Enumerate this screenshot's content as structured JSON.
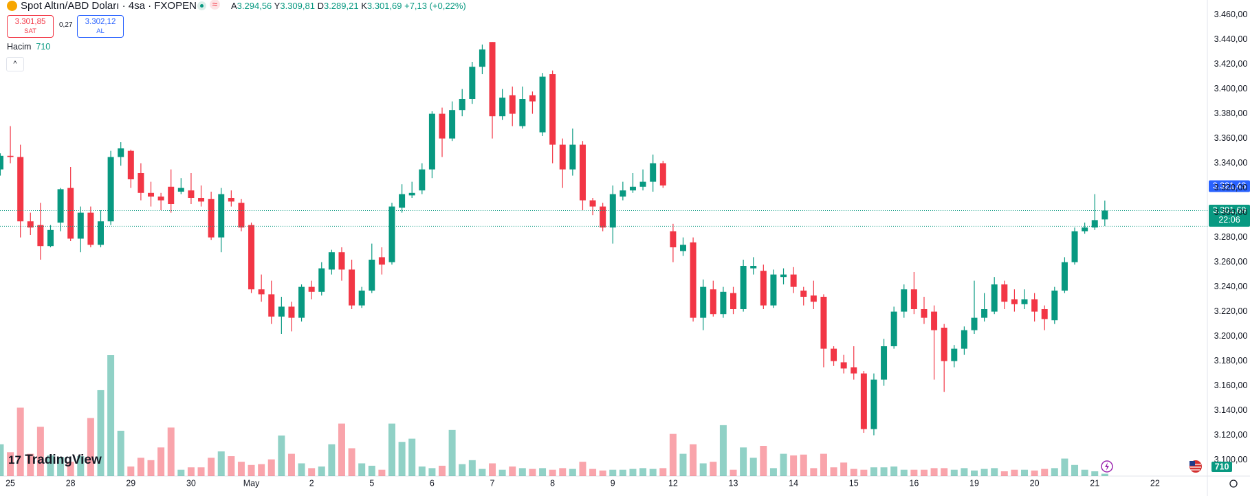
{
  "header": {
    "title": "Spot Altın/ABD Doları · 4sa · FXOPEN",
    "ohlc": [
      {
        "key": "A",
        "value": "3.294,56"
      },
      {
        "key": "Y",
        "value": "3.309,81"
      },
      {
        "key": "D",
        "value": "3.289,21"
      },
      {
        "key": "K",
        "value": "3.301,69"
      }
    ],
    "change": "+7,13 (+0,22%)",
    "sell": {
      "price": "3.301,85",
      "label": "SAT"
    },
    "spread": "0,27",
    "buy": {
      "price": "3.302,12",
      "label": "AL"
    },
    "volume_label": "Hacim",
    "logo": "TradingView"
  },
  "chart_data": {
    "type": "candlestick",
    "up_color": "#089981",
    "down_color": "#f23645",
    "categories": [
      null,
      "25",
      null,
      null,
      null,
      null,
      null,
      "28",
      null,
      null,
      null,
      null,
      null,
      "29",
      null,
      null,
      null,
      null,
      null,
      "30",
      null,
      null,
      null,
      null,
      null,
      "May",
      null,
      null,
      null,
      null,
      null,
      "2",
      null,
      null,
      null,
      null,
      null,
      "5",
      null,
      null,
      null,
      null,
      null,
      "6",
      null,
      null,
      null,
      null,
      null,
      "7",
      null,
      null,
      null,
      null,
      null,
      "8",
      null,
      null,
      null,
      null,
      null,
      "9",
      null,
      null,
      null,
      null,
      null,
      "12",
      null,
      null,
      null,
      null,
      null,
      "13",
      null,
      null,
      null,
      null,
      null,
      "14",
      null,
      null,
      null,
      null,
      null,
      "15",
      null,
      null,
      null,
      null,
      null,
      "16",
      null,
      null,
      null,
      null,
      null,
      "19",
      null,
      null,
      null,
      null,
      null,
      "20",
      null,
      null,
      null,
      null,
      null,
      "21",
      null,
      null,
      null,
      null,
      null,
      "22"
    ],
    "open": [
      3335,
      3346,
      3345,
      3293,
      3290,
      3273,
      3292,
      3320,
      3279,
      3300,
      3274,
      3293,
      3345,
      3350,
      3332,
      3316,
      3313,
      3321,
      3317,
      3318,
      3312,
      3311,
      3280,
      3312,
      3308,
      3290,
      3238,
      3234,
      3216,
      3224,
      3215,
      3240,
      3236,
      3254,
      3268,
      3254,
      3225,
      3237,
      3264,
      3260,
      3304,
      3314,
      3318,
      3335,
      3380,
      3360,
      3383,
      3392,
      3418,
      3438,
      3378,
      3395,
      3370,
      3395,
      3365,
      3412,
      3355,
      3335,
      3355,
      3310,
      3305,
      3288,
      3313,
      3318,
      3321,
      3325,
      3340,
      3285,
      3269,
      3276,
      3215,
      3238,
      3218,
      3235,
      3222,
      3255,
      3253,
      3225,
      3248,
      3250,
      3237,
      3233,
      3232,
      3190,
      3179,
      3175,
      3170,
      3125,
      3165,
      3192,
      3220,
      3238,
      3222,
      3220,
      3207,
      3180,
      3190,
      3205,
      3215,
      3220,
      3242,
      3230,
      3226,
      3230,
      3222,
      3213,
      3237,
      3260,
      3285,
      3288,
      3294.56,
      null,
      null,
      null,
      null,
      null
    ],
    "high": [
      3348,
      3370,
      3355,
      3300,
      3308,
      3290,
      3320,
      3337,
      3305,
      3305,
      3302,
      3350,
      3357,
      3351,
      3340,
      3325,
      3316,
      3335,
      3328,
      3332,
      3322,
      3317,
      3320,
      3318,
      3311,
      3292,
      3250,
      3245,
      3232,
      3228,
      3242,
      3245,
      3260,
      3270,
      3272,
      3262,
      3240,
      3275,
      3272,
      3308,
      3323,
      3325,
      3340,
      3382,
      3385,
      3390,
      3400,
      3422,
      3436,
      3438,
      3400,
      3402,
      3402,
      3398,
      3413,
      3415,
      3360,
      3368,
      3358,
      3312,
      3308,
      3322,
      3325,
      3332,
      3335,
      3347,
      3342,
      3291,
      3280,
      3280,
      3246,
      3245,
      3240,
      3240,
      3262,
      3264,
      3258,
      3254,
      3255,
      3256,
      3240,
      3245,
      3234,
      3192,
      3185,
      3192,
      3172,
      3170,
      3198,
      3224,
      3242,
      3252,
      3232,
      3225,
      3210,
      3193,
      3208,
      3245,
      3235,
      3248,
      3245,
      3238,
      3238,
      3235,
      3225,
      3240,
      3264,
      3288,
      3292,
      3315,
      3309.81,
      null,
      null,
      null,
      null,
      null
    ],
    "low": [
      3330,
      3340,
      3280,
      3282,
      3262,
      3272,
      3285,
      3277,
      3268,
      3272,
      3272,
      3290,
      3338,
      3320,
      3310,
      3305,
      3302,
      3300,
      3315,
      3307,
      3305,
      3278,
      3268,
      3305,
      3285,
      3235,
      3228,
      3210,
      3202,
      3204,
      3212,
      3230,
      3233,
      3250,
      3245,
      3222,
      3223,
      3235,
      3250,
      3258,
      3300,
      3312,
      3315,
      3328,
      3345,
      3358,
      3378,
      3388,
      3412,
      3360,
      3375,
      3370,
      3368,
      3380,
      3362,
      3340,
      3320,
      3330,
      3302,
      3298,
      3285,
      3275,
      3310,
      3316,
      3318,
      3317,
      3320,
      3260,
      3265,
      3212,
      3205,
      3216,
      3215,
      3218,
      3220,
      3250,
      3222,
      3223,
      3242,
      3235,
      3225,
      3222,
      3175,
      3176,
      3170,
      3165,
      3122,
      3120,
      3160,
      3190,
      3215,
      3218,
      3210,
      3165,
      3155,
      3175,
      3185,
      3202,
      3212,
      3218,
      3222,
      3220,
      3222,
      3212,
      3205,
      3210,
      3235,
      3258,
      3283,
      3286,
      3289.21,
      null,
      null,
      null,
      null,
      null
    ],
    "close": [
      3346,
      3345,
      3293,
      3288,
      3273,
      3286,
      3319,
      3279,
      3300,
      3274,
      3293,
      3345,
      3352,
      3327,
      3316,
      3313,
      3310,
      3307,
      3320,
      3312,
      3309,
      3280,
      3315,
      3309,
      3288,
      3238,
      3234,
      3216,
      3224,
      3215,
      3240,
      3236,
      3255,
      3268,
      3254,
      3225,
      3237,
      3262,
      3258,
      3305,
      3315,
      3316,
      3335,
      3380,
      3360,
      3383,
      3392,
      3418,
      3432,
      3378,
      3393,
      3380,
      3392,
      3390,
      3410,
      3355,
      3335,
      3355,
      3310,
      3305,
      3288,
      3315,
      3318,
      3321,
      3325,
      3340,
      3322,
      3272,
      3274,
      3215,
      3240,
      3218,
      3236,
      3222,
      3257,
      3257,
      3225,
      3250,
      3250,
      3240,
      3232,
      3228,
      3190,
      3180,
      3174,
      3170,
      3125,
      3165,
      3192,
      3220,
      3238,
      3222,
      3215,
      3205,
      3180,
      3190,
      3205,
      3215,
      3222,
      3242,
      3228,
      3226,
      3230,
      3220,
      3214,
      3237,
      3260,
      3285,
      3288,
      3294,
      3301.69,
      null,
      null,
      null,
      null,
      null
    ],
    "volume": [
      9600,
      7200,
      20640,
      6720,
      14880,
      6240,
      5760,
      4320,
      6000,
      17520,
      25920,
      36480,
      13680,
      2880,
      5520,
      4800,
      8640,
      14640,
      1920,
      2640,
      2640,
      5520,
      7440,
      6000,
      4320,
      3360,
      3600,
      5040,
      12240,
      6720,
      3840,
      2400,
      2880,
      9600,
      15840,
      8400,
      3840,
      3120,
      1920,
      15840,
      10320,
      11280,
      2880,
      2400,
      3120,
      13920,
      3600,
      4800,
      2160,
      3840,
      1920,
      2880,
      2400,
      2160,
      2400,
      1920,
      2400,
      2160,
      4320,
      2160,
      1680,
      1920,
      1920,
      2160,
      2400,
      2160,
      2400,
      12720,
      6720,
      9600,
      3840,
      4320,
      15360,
      1920,
      8640,
      5520,
      9120,
      2400,
      6720,
      6240,
      6480,
      2400,
      6720,
      2640,
      4080,
      2160,
      1920,
      2640,
      2640,
      2880,
      1920,
      1920,
      1920,
      2400,
      2400,
      1920,
      2400,
      1680,
      2160,
      2400,
      1440,
      1920,
      1920,
      1680,
      2160,
      2400,
      5280,
      3360,
      1920,
      1440,
      710,
      null,
      null,
      null,
      null,
      null
    ],
    "ylim": [
      3087,
      3472
    ],
    "yticks": [
      {
        "value": 3100,
        "label": "3.100,00"
      },
      {
        "value": 3120,
        "label": "3.120,00"
      },
      {
        "value": 3140,
        "label": "3.140,00"
      },
      {
        "value": 3160,
        "label": "3.160,00"
      },
      {
        "value": 3180,
        "label": "3.180,00"
      },
      {
        "value": 3200,
        "label": "3.200,00"
      },
      {
        "value": 3220,
        "label": "3.220,00"
      },
      {
        "value": 3240,
        "label": "3.240,00"
      },
      {
        "value": 3260,
        "label": "3.260,00"
      },
      {
        "value": 3280,
        "label": "3.280,00"
      },
      {
        "value": 3300,
        "label": "3.300,00"
      },
      {
        "value": 3320,
        "label": "3.320,00"
      },
      {
        "value": 3340,
        "label": "3.340,00"
      },
      {
        "value": 3360,
        "label": "3.360,00"
      },
      {
        "value": 3380,
        "label": "3.380,00"
      },
      {
        "value": 3400,
        "label": "3.400,00"
      },
      {
        "value": 3420,
        "label": "3.420,00"
      },
      {
        "value": 3440,
        "label": "3.440,00"
      },
      {
        "value": 3460,
        "label": "3.460,00"
      }
    ],
    "dotted_lines": [
      3301.69,
      3289
    ],
    "dotted_color": "#089981",
    "price_tags": [
      {
        "value": 3321.43,
        "label": "3.321,43",
        "color": "#2962ff"
      },
      {
        "value": 3301.69,
        "label": "3.301,69",
        "color": "#089981",
        "countdown": "22:06"
      }
    ]
  }
}
